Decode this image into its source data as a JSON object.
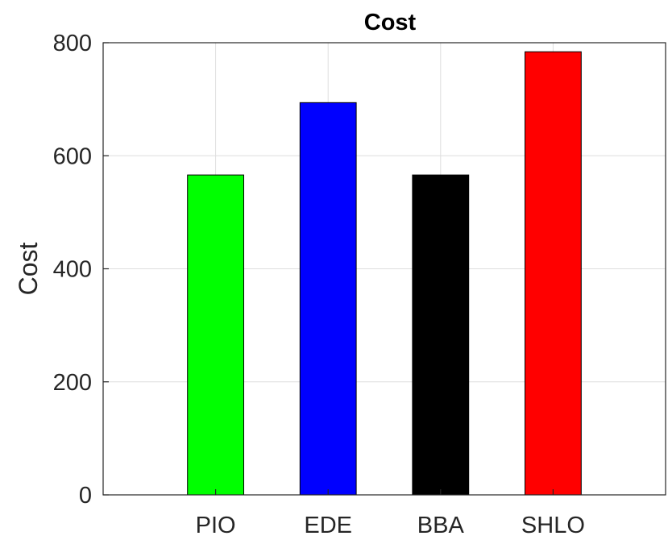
{
  "chart_data": {
    "type": "bar",
    "title": "Cost",
    "xlabel": "",
    "ylabel": "Cost",
    "categories": [
      "PIO",
      "EDE",
      "BBA",
      "SHLO"
    ],
    "values": [
      566,
      694,
      566,
      784
    ],
    "colors": [
      "#00ff00",
      "#0000ff",
      "#000000",
      "#ff0000"
    ],
    "ylim": [
      0,
      800
    ],
    "yticks": [
      0,
      200,
      400,
      600,
      800
    ],
    "yticklabels": [
      "0",
      "200",
      "400",
      "600",
      "800"
    ],
    "xlim": [
      0,
      5
    ],
    "grid": true,
    "legend": "none"
  }
}
